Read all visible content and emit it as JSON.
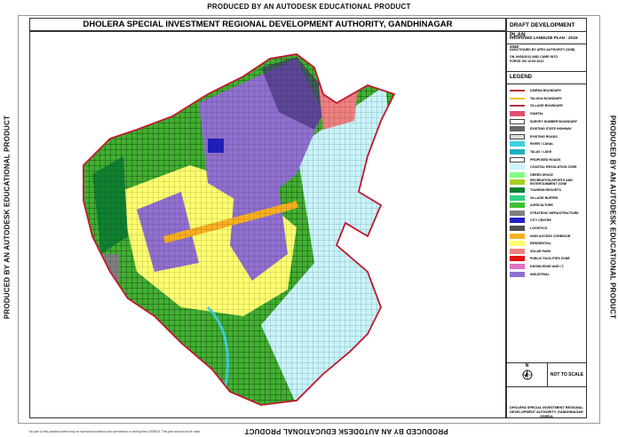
{
  "watermark": "PRODUCED BY AN AUTODESK EDUCATIONAL PRODUCT",
  "title": "DHOLERA SPECIAL INVESTMENT REGIONAL DEVELOPMENT AUTHORITY, GANDHINAGAR",
  "panel": {
    "plan_title": "DRAFT DEVELOPMENT PLAN",
    "subtitle": "PROPOSED LANDUSE  PLAN : 2019-2040",
    "sanction_1": "SANCTIONED BY APEX AUTHORITY (GDB)",
    "sanction_2": "ON 10/08/2012 AND CAME INTO",
    "sanction_3": "FORCE ON 10-09-2012",
    "legend_title": "LEGEND",
    "north": "N",
    "scale": "NOT TO SCALE",
    "org_1": "DHOLERA SPECIAL INVESTMENT REGIONAL",
    "org_2": "DEVELOPMENT  AUTHORITY, GANDHINAGAR",
    "org_3": "DSIRDA"
  },
  "legend": [
    {
      "label": "DSIRDA BOUNDARY",
      "color": "#c0182a"
    },
    {
      "label": "TALUKA BOUNDARY",
      "color": "#e8c020"
    },
    {
      "label": "VILLAGE BOUNDARY",
      "color": "#b03040"
    },
    {
      "label": "GAMTAL",
      "color": "#e05070"
    },
    {
      "label": "SURVEY NUMBER BOUNDARY",
      "color": "#ffffff"
    },
    {
      "label": "EXISTING STATE HIGHWAY",
      "color": "#666666"
    },
    {
      "label": "EXISTING ROADS",
      "color": "#dddddd"
    },
    {
      "label": "RIVER / CANAL",
      "color": "#40d0e0"
    },
    {
      "label": "TALAV / LAKE",
      "color": "#20b0c0"
    },
    {
      "label": "PROPOSED ROADS",
      "color": "#ffffff"
    },
    {
      "label": "COASTAL REGULATION ZONE",
      "color": "#c8f4fa"
    },
    {
      "label": "GREEN SPACE",
      "color": "#80ff80"
    },
    {
      "label": "RECREATION,SPORTS AND ENTERTAINMENT ZONE",
      "color": "#a8d020"
    },
    {
      "label": "TOURISM RESORTS",
      "color": "#108030"
    },
    {
      "label": "VILLAGE BUFFER",
      "color": "#30d080"
    },
    {
      "label": "AGRICULTURE",
      "color": "#40c030"
    },
    {
      "label": "STRATEGIC INFRASTRUCTURE",
      "color": "#808080"
    },
    {
      "label": "CITY CENTRE",
      "color": "#2020c0"
    },
    {
      "label": "LOGISTICS",
      "color": "#505050"
    },
    {
      "label": "HIGH ACCESS CORRIDOR",
      "color": "#f8b020"
    },
    {
      "label": "RESIDENTIAL",
      "color": "#ffff70"
    },
    {
      "label": "SOLAR PARK",
      "color": "#f08080"
    },
    {
      "label": "PUBLIC FACILITIES ZONE",
      "color": "#e01010"
    },
    {
      "label": "KNOWLEDGE AND I.T.",
      "color": "#e070c0"
    },
    {
      "label": "INDUSTRIAL",
      "color": "#9070d0"
    }
  ],
  "disclaimer": "No part of this plan/document may be reproduced without prior permission in writing from DSIRDA. This plan should not be used"
}
